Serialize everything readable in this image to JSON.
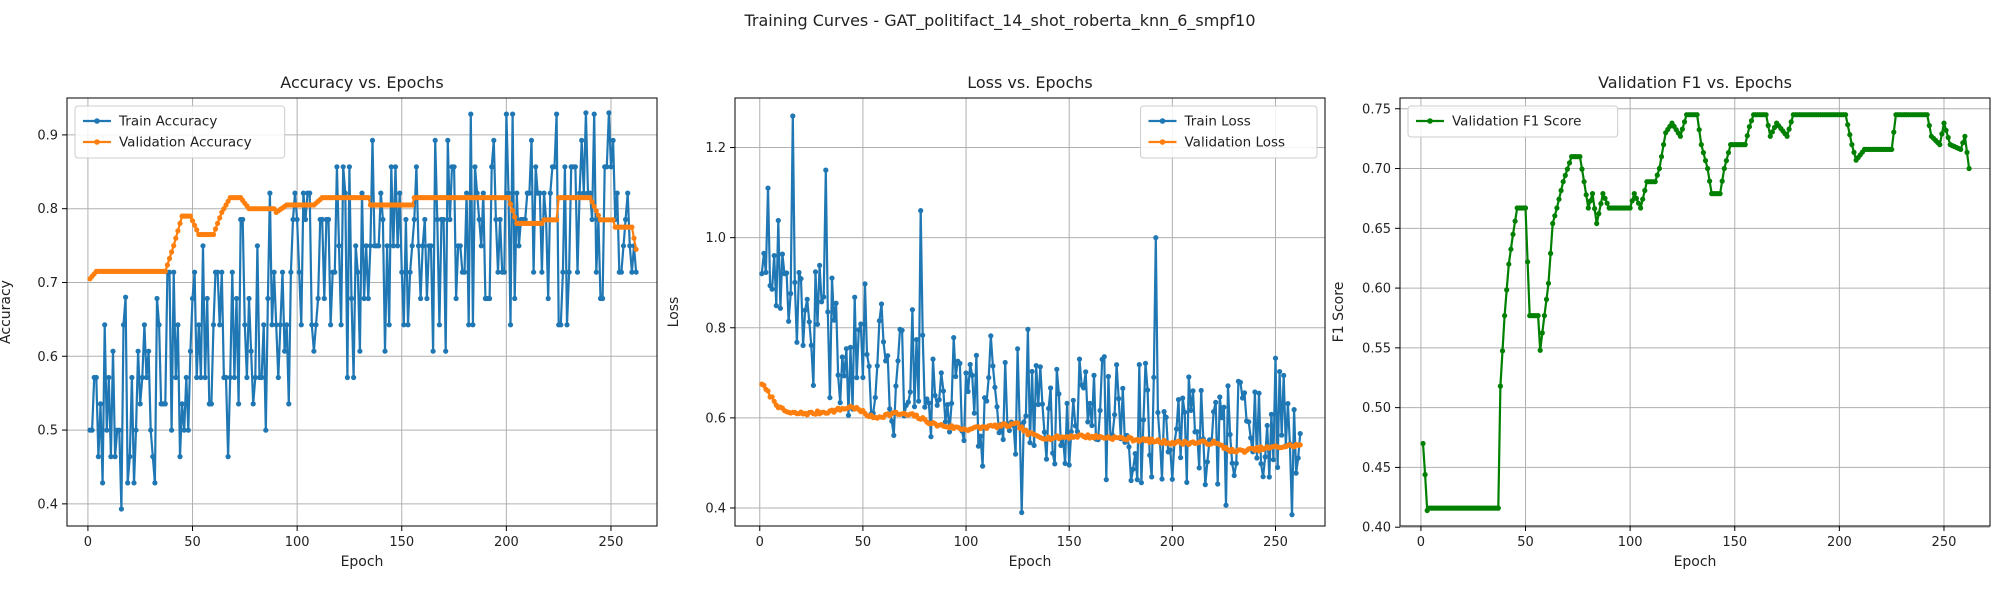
{
  "figure_title": "Training Curves - GAT_politifact_14_shot_roberta_knn_6_smpf10",
  "colors": {
    "train": "#1f77b4",
    "val": "#ff7f0e",
    "f1": "#008000"
  },
  "chart_data": [
    {
      "type": "line",
      "title": "Accuracy vs. Epochs",
      "xlabel": "Epoch",
      "ylabel": "Accuracy",
      "xlim": [
        -10,
        272
      ],
      "ylim": [
        0.37,
        0.95
      ],
      "xticks": [
        0,
        50,
        100,
        150,
        200,
        250
      ],
      "yticks": [
        0.4,
        0.5,
        0.6,
        0.7,
        0.8,
        0.9
      ],
      "yformat": 1,
      "grid": true,
      "legend": "upper-left",
      "series": [
        {
          "name": "Train Accuracy",
          "color_key": "train",
          "seed": 17,
          "model": "rand",
          "knots": [
            [
              1,
              0.54
            ],
            [
              40,
              0.58
            ],
            [
              80,
              0.66
            ],
            [
              120,
              0.72
            ],
            [
              160,
              0.74
            ],
            [
              200,
              0.77
            ],
            [
              261,
              0.83
            ]
          ],
          "noise": 0.13,
          "lo": 0.39,
          "hi": 0.93,
          "step": 0.0357,
          "min_pts": [
            [
              16,
              0.393
            ]
          ],
          "max_pts": [
            [
              18,
              0.68
            ]
          ],
          "first": 0.5,
          "last": 0.714
        },
        {
          "name": "Validation Accuracy",
          "color_key": "val",
          "model": "step",
          "keypoints": [
            [
              1,
              0.705
            ],
            [
              4,
              0.715
            ],
            [
              37,
              0.715
            ],
            [
              41,
              0.75
            ],
            [
              45,
              0.79
            ],
            [
              49,
              0.79
            ],
            [
              53,
              0.765
            ],
            [
              60,
              0.765
            ],
            [
              64,
              0.795
            ],
            [
              68,
              0.815
            ],
            [
              73,
              0.815
            ],
            [
              77,
              0.8
            ],
            [
              90,
              0.795
            ],
            [
              95,
              0.805
            ],
            [
              108,
              0.805
            ],
            [
              112,
              0.815
            ],
            [
              128,
              0.815
            ],
            [
              135,
              0.805
            ],
            [
              150,
              0.805
            ],
            [
              156,
              0.815
            ],
            [
              201,
              0.815
            ],
            [
              205,
              0.78
            ],
            [
              218,
              0.785
            ],
            [
              225,
              0.815
            ],
            [
              240,
              0.815
            ],
            [
              245,
              0.785
            ],
            [
              252,
              0.775
            ],
            [
              260,
              0.775
            ],
            [
              262,
              0.745
            ]
          ],
          "first": 0.705,
          "last": 0.745
        }
      ]
    },
    {
      "type": "line",
      "title": "Loss vs. Epochs",
      "xlabel": "Epoch",
      "ylabel": "Loss",
      "xlim": [
        -12,
        274
      ],
      "ylim": [
        0.36,
        1.31
      ],
      "xticks": [
        0,
        50,
        100,
        150,
        200,
        250
      ],
      "yticks": [
        0.4,
        0.6,
        0.8,
        1.0,
        1.2
      ],
      "yformat": 1,
      "grid": true,
      "legend": "upper-right",
      "series": [
        {
          "name": "Train Loss",
          "color_key": "train",
          "seed": 41,
          "model": "rand",
          "knots": [
            [
              1,
              0.9
            ],
            [
              20,
              0.82
            ],
            [
              60,
              0.72
            ],
            [
              100,
              0.66
            ],
            [
              150,
              0.61
            ],
            [
              200,
              0.58
            ],
            [
              261,
              0.55
            ]
          ],
          "noise": 0.13,
          "lo": 0.38,
          "hi": 1.27,
          "step": 0,
          "max_pts": [
            [
              16,
              1.27
            ],
            [
              4,
              1.11
            ],
            [
              32,
              1.15
            ],
            [
              78,
              1.06
            ],
            [
              192,
              1.0
            ]
          ],
          "min_pts": [
            [
              127,
              0.39
            ],
            [
              258,
              0.385
            ]
          ],
          "first": 0.92,
          "last": 0.565
        },
        {
          "name": "Validation Loss",
          "color_key": "val",
          "model": "smooth",
          "keypoints": [
            [
              1,
              0.675
            ],
            [
              5,
              0.65
            ],
            [
              10,
              0.62
            ],
            [
              15,
              0.61
            ],
            [
              25,
              0.61
            ],
            [
              35,
              0.615
            ],
            [
              45,
              0.625
            ],
            [
              55,
              0.6
            ],
            [
              65,
              0.61
            ],
            [
              75,
              0.605
            ],
            [
              85,
              0.585
            ],
            [
              100,
              0.575
            ],
            [
              110,
              0.58
            ],
            [
              125,
              0.585
            ],
            [
              130,
              0.565
            ],
            [
              140,
              0.555
            ],
            [
              155,
              0.56
            ],
            [
              175,
              0.555
            ],
            [
              200,
              0.545
            ],
            [
              220,
              0.545
            ],
            [
              230,
              0.525
            ],
            [
              250,
              0.535
            ],
            [
              262,
              0.54
            ]
          ],
          "first": 0.675,
          "last": 0.54
        }
      ]
    },
    {
      "type": "line",
      "title": "Validation F1 vs. Epochs",
      "xlabel": "Epoch",
      "ylabel": "F1 Score",
      "xlim": [
        -10,
        272
      ],
      "ylim": [
        0.401,
        0.759
      ],
      "xticks": [
        0,
        50,
        100,
        150,
        200,
        250
      ],
      "yticks": [
        0.4,
        0.45,
        0.5,
        0.55,
        0.6,
        0.65,
        0.7,
        0.75
      ],
      "yformat": 2,
      "grid": true,
      "legend": "upper-left",
      "series": [
        {
          "name": "Validation F1 Score",
          "color_key": "f1",
          "model": "step",
          "keypoints": [
            [
              1,
              0.47
            ],
            [
              2,
              0.444
            ],
            [
              3,
              0.414
            ],
            [
              4,
              0.416
            ],
            [
              37,
              0.416
            ],
            [
              38,
              0.518
            ],
            [
              40,
              0.577
            ],
            [
              42,
              0.62
            ],
            [
              44,
              0.645
            ],
            [
              46,
              0.667
            ],
            [
              50,
              0.667
            ],
            [
              52,
              0.577
            ],
            [
              56,
              0.577
            ],
            [
              57,
              0.548
            ],
            [
              59,
              0.577
            ],
            [
              61,
              0.604
            ],
            [
              63,
              0.654
            ],
            [
              65,
              0.667
            ],
            [
              68,
              0.689
            ],
            [
              72,
              0.71
            ],
            [
              76,
              0.71
            ],
            [
              78,
              0.689
            ],
            [
              80,
              0.667
            ],
            [
              82,
              0.679
            ],
            [
              84,
              0.654
            ],
            [
              87,
              0.679
            ],
            [
              90,
              0.667
            ],
            [
              100,
              0.667
            ],
            [
              102,
              0.679
            ],
            [
              105,
              0.667
            ],
            [
              108,
              0.689
            ],
            [
              112,
              0.689
            ],
            [
              114,
              0.7
            ],
            [
              117,
              0.73
            ],
            [
              120,
              0.738
            ],
            [
              124,
              0.727
            ],
            [
              127,
              0.745
            ],
            [
              132,
              0.745
            ],
            [
              134,
              0.72
            ],
            [
              137,
              0.7
            ],
            [
              139,
              0.679
            ],
            [
              143,
              0.679
            ],
            [
              145,
              0.7
            ],
            [
              148,
              0.72
            ],
            [
              155,
              0.72
            ],
            [
              157,
              0.735
            ],
            [
              159,
              0.745
            ],
            [
              165,
              0.745
            ],
            [
              167,
              0.727
            ],
            [
              170,
              0.738
            ],
            [
              175,
              0.727
            ],
            [
              178,
              0.745
            ],
            [
              203,
              0.745
            ],
            [
              206,
              0.72
            ],
            [
              208,
              0.707
            ],
            [
              212,
              0.716
            ],
            [
              225,
              0.716
            ],
            [
              227,
              0.745
            ],
            [
              242,
              0.745
            ],
            [
              244,
              0.727
            ],
            [
              248,
              0.72
            ],
            [
              250,
              0.738
            ],
            [
              253,
              0.72
            ],
            [
              258,
              0.716
            ],
            [
              260,
              0.727
            ],
            [
              262,
              0.7
            ]
          ],
          "first": 0.47,
          "last": 0.7
        }
      ]
    }
  ]
}
